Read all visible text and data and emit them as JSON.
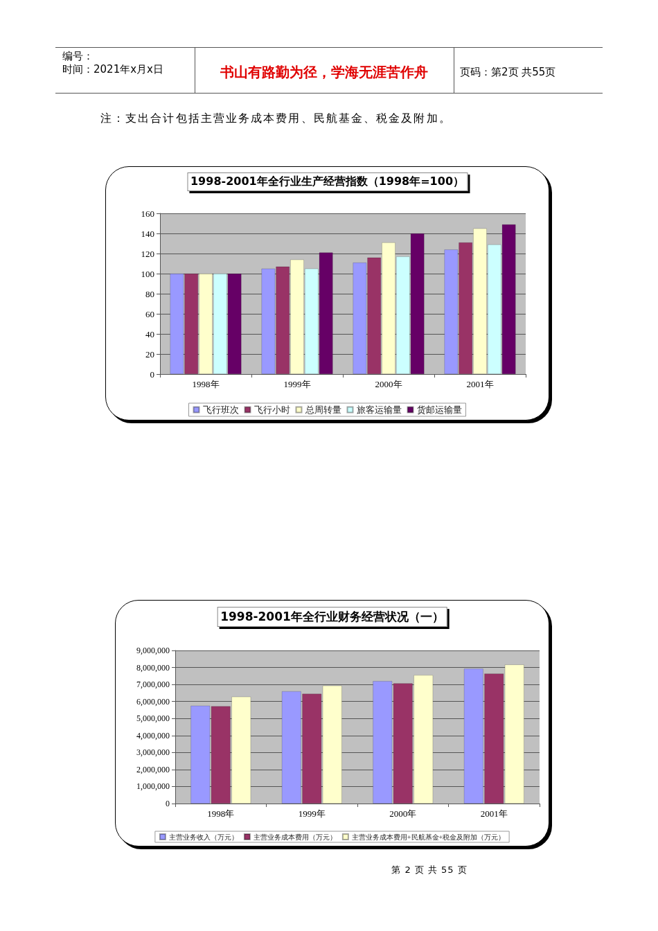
{
  "chart_data": [
    {
      "type": "bar",
      "title": "1998-2001年全行业生产经营指数（1998年=100）",
      "annotations": [
        "编号：",
        "时间：2021年x月x日",
        "书山有路勤为径，学海无涯苦作舟",
        "页码：第2页 共55页",
        "注：支出合计包括主营业务成本费用、民航基金、税金及附加。"
      ],
      "categories": [
        "1998年",
        "1999年",
        "2000年",
        "2001年"
      ],
      "series": [
        {
          "name": "飞行班次",
          "color": "#9999ff",
          "values": [
            100,
            105,
            111,
            124
          ]
        },
        {
          "name": "飞行小时",
          "color": "#993366",
          "values": [
            100,
            107,
            116,
            131
          ]
        },
        {
          "name": "总周转量",
          "color": "#ffffcc",
          "values": [
            100,
            114,
            131,
            145
          ]
        },
        {
          "name": "旅客运输量",
          "color": "#ccffff",
          "values": [
            100,
            105,
            117,
            129
          ]
        },
        {
          "name": "货邮运输量",
          "color": "#660066",
          "values": [
            100,
            121,
            140,
            149
          ]
        }
      ],
      "ylim": [
        0,
        160
      ],
      "yticks": [
        0,
        20,
        40,
        60,
        80,
        100,
        120,
        140,
        160
      ],
      "grid": "y",
      "legend": "bottom"
    },
    {
      "type": "bar",
      "title": "1998-2001年全行业财务经营状况（一）",
      "annotations": [
        "第 2 页 共 55 页"
      ],
      "categories": [
        "1998年",
        "1999年",
        "2000年",
        "2001年"
      ],
      "series": [
        {
          "name": "主营业务收入（万元）",
          "color": "#9999ff",
          "values": [
            5750000,
            6600000,
            7200000,
            7930000
          ]
        },
        {
          "name": "主营业务成本费用（万元）",
          "color": "#993366",
          "values": [
            5720000,
            6450000,
            7070000,
            7640000
          ]
        },
        {
          "name": "主营业务成本费用+民航基金+税金及附加（万元）",
          "color": "#ffffcc",
          "values": [
            6280000,
            6930000,
            7550000,
            8170000
          ]
        }
      ],
      "ylim": [
        0,
        9000000
      ],
      "yticks": [
        0,
        {
          "value": 1000000,
          "label": "1,000,000"
        },
        {
          "value": 2000000,
          "label": "2,000,000"
        },
        {
          "value": 3000000,
          "label": "3,000,000"
        },
        {
          "value": 4000000,
          "label": "4,000,000"
        },
        {
          "value": 5000000,
          "label": "5,000,000"
        },
        {
          "value": 6000000,
          "label": "6,000,000"
        },
        {
          "value": 7000000,
          "label": "7,000,000"
        },
        {
          "value": 8000000,
          "label": "8,000,000"
        },
        {
          "value": 9000000,
          "label": "9,000,000"
        }
      ],
      "grid": "y",
      "legend": "bottom"
    }
  ]
}
